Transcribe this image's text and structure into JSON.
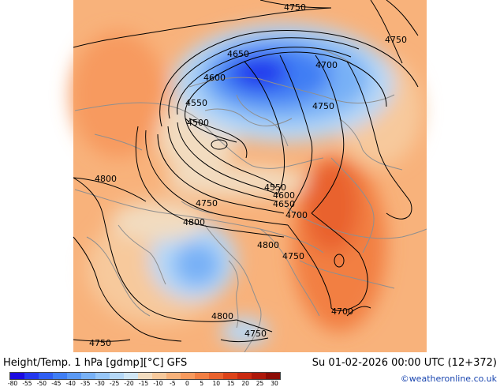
{
  "map": {
    "contour_labels": [
      "4750",
      "4750",
      "4650",
      "4700",
      "4600",
      "4550",
      "4750",
      "4500",
      "4800",
      "4550",
      "4600",
      "4650",
      "4750",
      "4700",
      "4800",
      "4800",
      "4750",
      "4800",
      "4700",
      "4750",
      "4750"
    ]
  },
  "footer": {
    "title": "Height/Temp. 1 hPa [gdmp][°C] GFS",
    "datetime": "Su 01-02-2026 00:00 UTC (12+372)",
    "credit": "©weatheronline.co.uk"
  },
  "legend": {
    "ticks": [
      "-80",
      "-55",
      "-50",
      "-45",
      "-40",
      "-35",
      "-30",
      "-25",
      "-20",
      "-15",
      "-10",
      "-5",
      "0",
      "5",
      "10",
      "15",
      "20",
      "25",
      "30"
    ],
    "colors": [
      "#1c0be0",
      "#2438ee",
      "#2f5ef2",
      "#3f7ef4",
      "#5a99f5",
      "#78b1f6",
      "#97c6f7",
      "#b5d8f8",
      "#d0e6f5",
      "#f2dcc0",
      "#f7c99c",
      "#f8b27b",
      "#f79a5e",
      "#f27f43",
      "#e9622d",
      "#dc4319",
      "#c92a10",
      "#ad180a",
      "#8c0c05"
    ]
  }
}
